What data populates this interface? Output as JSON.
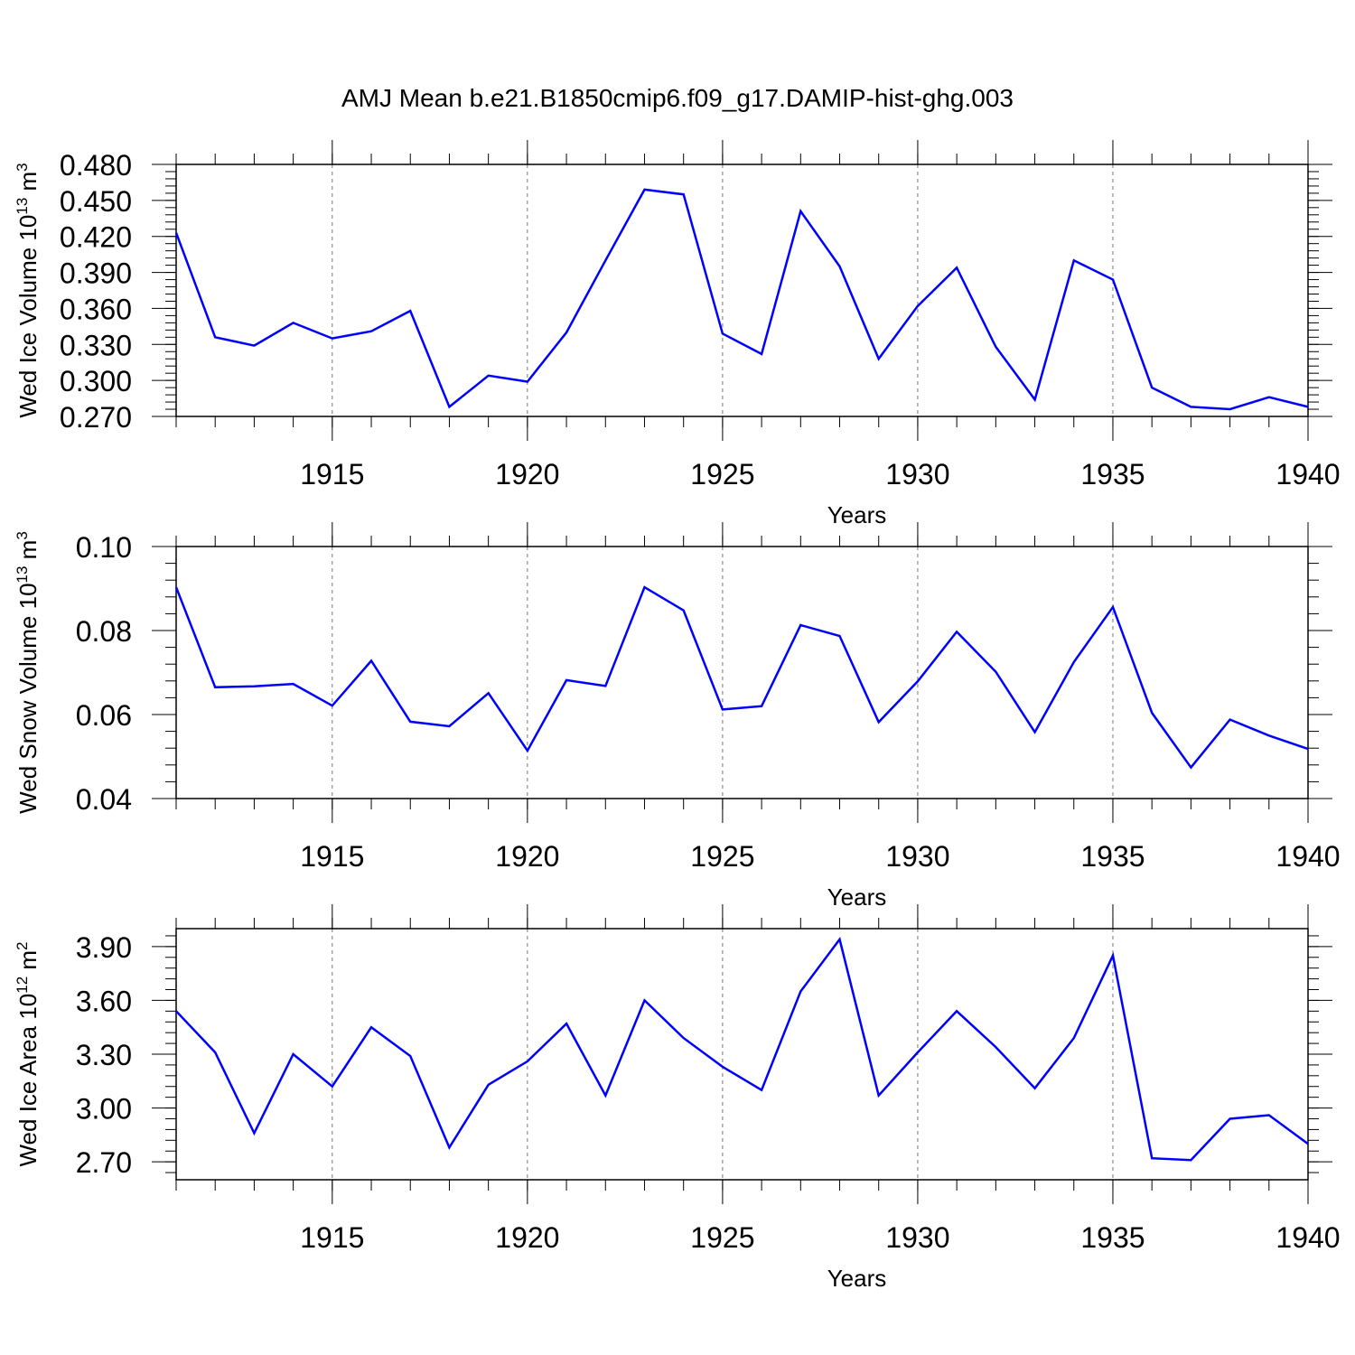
{
  "title": "AMJ Mean b.e21.B1850cmip6.f09_g17.DAMIP-hist-ghg.003",
  "chart_data": [
    {
      "type": "line",
      "ylabel": "Wed Ice Volume 10",
      "ylabel_sup": "13",
      "ylabel_unit": " m",
      "ylabel_unit_sup": "3",
      "xlabel": "Years",
      "xlim": [
        1911,
        1940
      ],
      "ylim": [
        0.27,
        0.48
      ],
      "yticks": [
        0.27,
        0.3,
        0.33,
        0.36,
        0.39,
        0.42,
        0.45,
        0.48
      ],
      "ytick_labels": [
        "0.270",
        "0.300",
        "0.330",
        "0.360",
        "0.390",
        "0.420",
        "0.450",
        "0.480"
      ],
      "xticks": [
        1915,
        1920,
        1925,
        1930,
        1935,
        1940
      ],
      "xtick_labels": [
        "1915",
        "1920",
        "1925",
        "1930",
        "1935",
        "1940"
      ],
      "x": [
        1911,
        1912,
        1913,
        1914,
        1915,
        1916,
        1917,
        1918,
        1919,
        1920,
        1921,
        1922,
        1923,
        1924,
        1925,
        1926,
        1927,
        1928,
        1929,
        1930,
        1931,
        1932,
        1933,
        1934,
        1935,
        1936,
        1937,
        1938,
        1939,
        1940
      ],
      "y": [
        0.423,
        0.336,
        0.329,
        0.348,
        0.335,
        0.341,
        0.358,
        0.278,
        0.304,
        0.299,
        0.34,
        0.4,
        0.459,
        0.455,
        0.339,
        0.322,
        0.441,
        0.395,
        0.318,
        0.362,
        0.394,
        0.328,
        0.284,
        0.4,
        0.384,
        0.294,
        0.278,
        0.276,
        0.286,
        0.278
      ],
      "color": "#0000ff",
      "grid": "vertical dashed at major ticks"
    },
    {
      "type": "line",
      "ylabel": "Wed Snow Volume 10",
      "ylabel_sup": "13",
      "ylabel_unit": " m",
      "ylabel_unit_sup": "3",
      "xlabel": "Years",
      "xlim": [
        1911,
        1940
      ],
      "ylim": [
        0.04,
        0.1
      ],
      "yticks": [
        0.04,
        0.06,
        0.08,
        0.1
      ],
      "ytick_labels": [
        "0.04",
        "0.06",
        "0.08",
        "0.10"
      ],
      "xticks": [
        1915,
        1920,
        1925,
        1930,
        1935,
        1940
      ],
      "xtick_labels": [
        "1915",
        "1920",
        "1925",
        "1930",
        "1935",
        "1940"
      ],
      "x": [
        1911,
        1912,
        1913,
        1914,
        1915,
        1916,
        1917,
        1918,
        1919,
        1920,
        1921,
        1922,
        1923,
        1924,
        1925,
        1926,
        1927,
        1928,
        1929,
        1930,
        1931,
        1932,
        1933,
        1934,
        1935,
        1936,
        1937,
        1938,
        1939,
        1940
      ],
      "y": [
        0.0903,
        0.0665,
        0.0667,
        0.0673,
        0.0621,
        0.0728,
        0.0583,
        0.0572,
        0.0651,
        0.0514,
        0.0682,
        0.0668,
        0.0903,
        0.0848,
        0.0612,
        0.062,
        0.0813,
        0.0787,
        0.0582,
        0.0679,
        0.0797,
        0.0702,
        0.0558,
        0.0725,
        0.0856,
        0.0604,
        0.0474,
        0.0588,
        0.055,
        0.0518
      ],
      "color": "#0000ff",
      "grid": "vertical dashed at major ticks"
    },
    {
      "type": "line",
      "ylabel": "Wed Ice Area 10",
      "ylabel_sup": "12",
      "ylabel_unit": " m",
      "ylabel_unit_sup": "2",
      "xlabel": "Years",
      "xlim": [
        1911,
        1940
      ],
      "ylim": [
        2.6,
        4.0
      ],
      "yticks": [
        2.7,
        3.0,
        3.3,
        3.6,
        3.9
      ],
      "ytick_labels": [
        "2.70",
        "3.00",
        "3.30",
        "3.60",
        "3.90"
      ],
      "xticks": [
        1915,
        1920,
        1925,
        1930,
        1935,
        1940
      ],
      "xtick_labels": [
        "1915",
        "1920",
        "1925",
        "1930",
        "1935",
        "1940"
      ],
      "x": [
        1911,
        1912,
        1913,
        1914,
        1915,
        1916,
        1917,
        1918,
        1919,
        1920,
        1921,
        1922,
        1923,
        1924,
        1925,
        1926,
        1927,
        1928,
        1929,
        1930,
        1931,
        1932,
        1933,
        1934,
        1935,
        1936,
        1937,
        1938,
        1939,
        1940
      ],
      "y": [
        3.54,
        3.31,
        2.86,
        3.3,
        3.12,
        3.45,
        3.29,
        2.78,
        3.13,
        3.26,
        3.47,
        3.07,
        3.6,
        3.39,
        3.23,
        3.1,
        3.65,
        3.94,
        3.07,
        3.31,
        3.54,
        3.34,
        3.11,
        3.39,
        3.85,
        2.72,
        2.71,
        2.94,
        2.96,
        2.8
      ],
      "color": "#0000ff",
      "grid": "vertical dashed at major ticks"
    }
  ]
}
